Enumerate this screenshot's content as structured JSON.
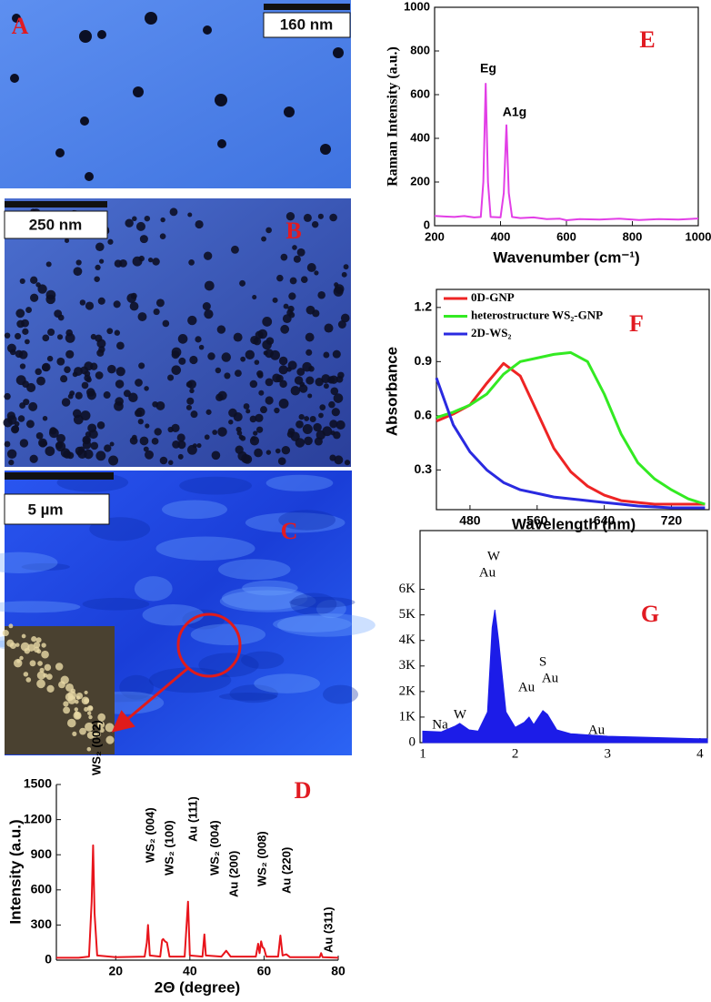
{
  "panels": [
    {
      "label": "A",
      "scale_bar": "160 nm"
    },
    {
      "label": "B",
      "scale_bar": "250 nm"
    },
    {
      "label": "C",
      "scale_bar": "5 µm"
    }
  ],
  "chart_data": [
    {
      "type": "line",
      "title": "D",
      "x_label": "2Θ (degree)",
      "y_label": "Intensity (a.u.)",
      "color": "#e8141b",
      "x": [
        4,
        10,
        12.8,
        13.5,
        13.9,
        14.3,
        15,
        20,
        27.8,
        28.4,
        28.7,
        29.2,
        32,
        32.5,
        32.8,
        33.3,
        33.8,
        34.5,
        38.6,
        39.2,
        39.5,
        40,
        43.4,
        43.9,
        44.3,
        48.5,
        49.8,
        51,
        57.8,
        58.4,
        58.8,
        59.2,
        59.6,
        60,
        60.6,
        63.8,
        64.4,
        65,
        66,
        67,
        75,
        75.4,
        75.8,
        80
      ],
      "values": [
        20,
        20,
        30,
        500,
        980,
        400,
        40,
        25,
        30,
        150,
        300,
        40,
        30,
        170,
        180,
        160,
        150,
        30,
        30,
        350,
        500,
        40,
        30,
        220,
        40,
        30,
        80,
        30,
        30,
        140,
        60,
        160,
        110,
        100,
        30,
        30,
        210,
        40,
        50,
        25,
        25,
        60,
        25,
        20
      ],
      "xlim": [
        4,
        80
      ],
      "ylim": [
        0,
        1500
      ],
      "xticks": [
        20,
        40,
        60,
        80
      ],
      "yticks": [
        0,
        300,
        600,
        900,
        1200,
        1500
      ],
      "annotations": [
        "WS₂ (002)",
        "WS₂ (004)",
        "WS₂ (100)",
        "Au (111)",
        "WS₂ (004)",
        "Au (200)",
        "WS₂ (008)",
        "Au (220)",
        "Au (311)"
      ]
    },
    {
      "type": "line",
      "title": "E",
      "x_label": "Wavenumber (cm⁻¹)",
      "y_label": "Raman Intensity (a.u.)",
      "color": "#e23ee6",
      "x": [
        200,
        230,
        260,
        290,
        320,
        340,
        348,
        355,
        362,
        370,
        400,
        410,
        418,
        425,
        435,
        460,
        500,
        540,
        580,
        600,
        640,
        700,
        760,
        820,
        880,
        940,
        1000
      ],
      "values": [
        45,
        42,
        40,
        44,
        38,
        40,
        200,
        650,
        200,
        40,
        38,
        150,
        460,
        150,
        40,
        35,
        38,
        30,
        32,
        25,
        30,
        28,
        32,
        26,
        30,
        28,
        33
      ],
      "xlim": [
        200,
        1000
      ],
      "ylim": [
        0,
        1000
      ],
      "xticks": [
        200,
        400,
        600,
        800,
        1000
      ],
      "yticks": [
        0,
        200,
        400,
        600,
        800,
        1000
      ],
      "annotations": [
        "Eg",
        "A1g"
      ]
    },
    {
      "type": "line",
      "title": "F",
      "x_label": "Wavelength (nm)",
      "y_label": "Absorbance",
      "legend": "upper left",
      "x": [
        440,
        460,
        480,
        500,
        520,
        540,
        560,
        580,
        600,
        620,
        640,
        660,
        680,
        700,
        720,
        740,
        760
      ],
      "series": [
        {
          "name": "0D-GNP",
          "color": "#ee2424",
          "values": [
            0.57,
            0.61,
            0.66,
            0.78,
            0.89,
            0.82,
            0.62,
            0.42,
            0.29,
            0.21,
            0.16,
            0.13,
            0.12,
            0.11,
            0.11,
            0.11,
            0.11
          ]
        },
        {
          "name": "heterostructure WS₂-GNP",
          "color": "#33ea22",
          "values": [
            0.59,
            0.62,
            0.66,
            0.72,
            0.83,
            0.9,
            0.92,
            0.94,
            0.95,
            0.9,
            0.72,
            0.5,
            0.34,
            0.25,
            0.19,
            0.14,
            0.11
          ]
        },
        {
          "name": "2D-WS₂",
          "color": "#2a2ae0",
          "values": [
            0.81,
            0.55,
            0.4,
            0.3,
            0.23,
            0.19,
            0.17,
            0.15,
            0.14,
            0.13,
            0.12,
            0.11,
            0.1,
            0.095,
            0.09,
            0.09,
            0.09
          ]
        }
      ],
      "xlim": [
        440,
        765
      ],
      "ylim": [
        0.08,
        1.3
      ],
      "xticks": [
        480,
        560,
        640,
        720
      ],
      "yticks": [
        0.3,
        0.6,
        0.9,
        1.2
      ]
    },
    {
      "type": "area",
      "title": "G",
      "color": "#1c1ce8",
      "x": [
        1.0,
        1.2,
        1.35,
        1.4,
        1.5,
        1.6,
        1.7,
        1.75,
        1.78,
        1.82,
        1.9,
        2.0,
        2.1,
        2.15,
        2.2,
        2.3,
        2.35,
        2.45,
        2.6,
        2.8,
        3.0,
        3.5,
        4.0,
        4.08
      ],
      "values": [
        450,
        420,
        650,
        750,
        500,
        450,
        1200,
        4500,
        5200,
        4000,
        1200,
        600,
        800,
        1000,
        700,
        1250,
        1100,
        500,
        350,
        300,
        250,
        200,
        150,
        150
      ],
      "xlim": [
        0.97,
        4.08
      ],
      "ylim": [
        0,
        8300
      ],
      "xticks": [
        1,
        2,
        3,
        4
      ],
      "yticks": [
        0,
        {
          "value": 1000,
          "label": "1K"
        },
        {
          "value": 2000,
          "label": "2K"
        },
        {
          "value": 3000,
          "label": "3K"
        },
        {
          "value": 4000,
          "label": "4K"
        },
        {
          "value": 5000,
          "label": "5K"
        },
        {
          "value": 6000,
          "label": "6K"
        }
      ],
      "annotations": [
        "Na",
        "W",
        "W",
        "Au",
        "Au",
        "S",
        "Au",
        "Au"
      ]
    }
  ]
}
